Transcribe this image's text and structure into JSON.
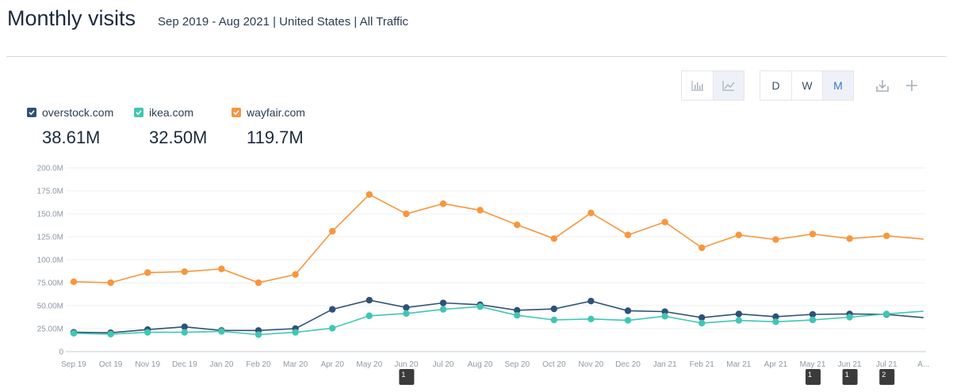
{
  "header": {
    "title": "Monthly visits",
    "subtitle": "Sep 2019 - Aug 2021 | United States | All Traffic"
  },
  "toolbar": {
    "chart_type_icons": [
      "bar-chart-icon",
      "line-chart-icon"
    ],
    "granularity": [
      "D",
      "W",
      "M"
    ],
    "granularity_selected": "M",
    "actions": [
      "download-icon",
      "plus-icon"
    ]
  },
  "legend": [
    {
      "name": "overstock.com",
      "total": "38.61M",
      "color": "#2e5178"
    },
    {
      "name": "ikea.com",
      "total": "32.50M",
      "color": "#3fc7b3"
    },
    {
      "name": "wayfair.com",
      "total": "119.7M",
      "color": "#f9963d"
    }
  ],
  "chart_data": {
    "type": "line",
    "x": [
      "Sep 19",
      "Oct 19",
      "Nov 19",
      "Dec 19",
      "Jan 20",
      "Feb 20",
      "Mar 20",
      "Apr 20",
      "May 20",
      "Jun 20",
      "Jul 20",
      "Aug 20",
      "Sep 20",
      "Oct 20",
      "Nov 20",
      "Dec 20",
      "Jan 21",
      "Feb 21",
      "Mar 21",
      "Apr 21",
      "May 21",
      "Jun 21",
      "Jul 21",
      "A..."
    ],
    "y_ticks": [
      "0",
      "25.00M",
      "50.00M",
      "75.00M",
      "100.0M",
      "125.0M",
      "150.0M",
      "175.0M",
      "200.0M"
    ],
    "ylim": [
      0,
      200
    ],
    "yunit": "M",
    "grid": true,
    "series": [
      {
        "name": "overstock.com",
        "color": "#2e5178",
        "values": [
          21,
          20.5,
          24,
          27,
          23,
          23,
          25,
          46,
          56,
          48,
          53,
          51,
          45,
          46.5,
          55,
          44.5,
          43.5,
          37,
          41,
          38,
          40.5,
          41,
          40.5,
          37
        ]
      },
      {
        "name": "ikea.com",
        "color": "#3fc7b3",
        "values": [
          20,
          19,
          21,
          21,
          22,
          18.5,
          21,
          25.5,
          39,
          41.5,
          46,
          49,
          39.5,
          34.5,
          35.5,
          34,
          38.5,
          31,
          34,
          32.5,
          34.5,
          37.5,
          41,
          44
        ]
      },
      {
        "name": "wayfair.com",
        "color": "#f9963d",
        "values": [
          76,
          75,
          86,
          87,
          90,
          75,
          84,
          131,
          171,
          150,
          161,
          154,
          138,
          123,
          151,
          127,
          141,
          113,
          127,
          122,
          128,
          123,
          126,
          122.5
        ]
      }
    ],
    "annotations": [
      {
        "x": "Jun 20",
        "label": "1"
      },
      {
        "x": "May 21",
        "label": "1"
      },
      {
        "x": "Jun 21",
        "label": "1"
      },
      {
        "x": "Jul 21",
        "label": "2"
      }
    ]
  }
}
